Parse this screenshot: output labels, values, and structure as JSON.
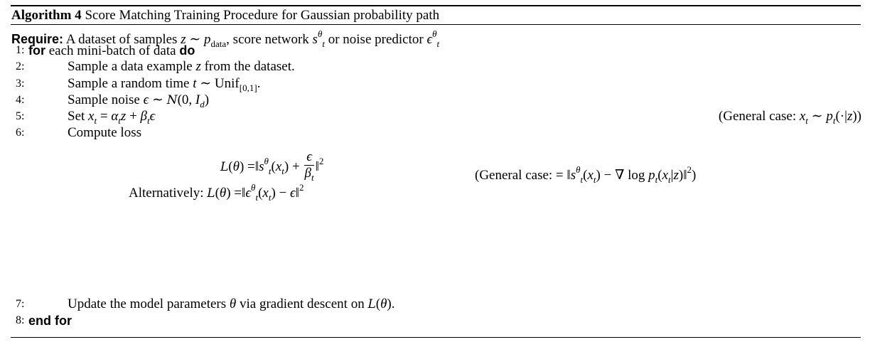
{
  "algorithm": {
    "label": "Algorithm 4",
    "title": "Score Matching Training Procedure for Gaussian probability path",
    "require_keyword": "Require:",
    "require": [
      [
        "rm",
        "A dataset of samples "
      ],
      [
        "it",
        "z"
      ],
      [
        "rm",
        " ∼ "
      ],
      [
        "it",
        "p"
      ],
      [
        "subrm",
        "data"
      ],
      [
        "rm",
        ", score network "
      ],
      [
        "it",
        "s"
      ],
      [
        "sup",
        "θ"
      ],
      [
        "sub",
        "t"
      ],
      [
        "rm",
        " or noise predictor "
      ],
      [
        "it",
        "ϵ"
      ],
      [
        "sup",
        "θ"
      ],
      [
        "sub",
        "t"
      ]
    ],
    "steps": [
      {
        "num": "1:",
        "segs": [
          [
            "kw",
            "for"
          ],
          [
            "rm",
            " each mini-batch of data "
          ],
          [
            "kw",
            "do"
          ]
        ]
      },
      {
        "num": "2:",
        "segs": [
          [
            "rm",
            "Sample a data example "
          ],
          [
            "it",
            "z"
          ],
          [
            "rm",
            " from the dataset."
          ]
        ]
      },
      {
        "num": "3:",
        "segs": [
          [
            "rm",
            "Sample a random time "
          ],
          [
            "it",
            "t"
          ],
          [
            "rm",
            " ∼ Unif"
          ],
          [
            "subrm",
            "[0,1]"
          ],
          [
            "rm",
            "."
          ]
        ]
      },
      {
        "num": "4:",
        "segs": [
          [
            "rm",
            "Sample noise "
          ],
          [
            "it",
            "ϵ"
          ],
          [
            "rm",
            " ∼ "
          ],
          [
            "cal",
            "N"
          ],
          [
            "rm",
            "(0, "
          ],
          [
            "it",
            "I"
          ],
          [
            "sub",
            "d"
          ],
          [
            "rm",
            ")"
          ]
        ]
      },
      {
        "num": "5:",
        "segs": [
          [
            "rm",
            "Set "
          ],
          [
            "it",
            "x"
          ],
          [
            "sub",
            "t"
          ],
          [
            "rm",
            " = "
          ],
          [
            "it",
            "α"
          ],
          [
            "sub",
            "t"
          ],
          [
            "it",
            "z"
          ],
          [
            "rm",
            " + "
          ],
          [
            "it",
            "β"
          ],
          [
            "sub",
            "t"
          ],
          [
            "it",
            "ϵ"
          ]
        ],
        "comment": [
          [
            "rm",
            "(General case: "
          ],
          [
            "it",
            "x"
          ],
          [
            "sub",
            "t"
          ],
          [
            "rm",
            " ∼ "
          ],
          [
            "it",
            "p"
          ],
          [
            "sub",
            "t"
          ],
          [
            "rm",
            "(·|"
          ],
          [
            "it",
            "z"
          ],
          [
            "rm",
            "))"
          ]
        ]
      },
      {
        "num": "6:",
        "segs": [
          [
            "rm",
            "Compute loss"
          ]
        ]
      },
      {
        "num": "7:",
        "segs": [
          [
            "rm",
            "Update the model parameters "
          ],
          [
            "it",
            "θ"
          ],
          [
            "rm",
            " via gradient descent on "
          ],
          [
            "cal",
            "L"
          ],
          [
            "rm",
            "("
          ],
          [
            "it",
            "θ"
          ],
          [
            "rm",
            ")."
          ]
        ]
      },
      {
        "num": "8:",
        "segs": [
          [
            "kw",
            "end for"
          ]
        ]
      }
    ],
    "loss_eq": {
      "lhs": [
        [
          "cal",
          "L"
        ],
        [
          "rm",
          "("
        ],
        [
          "it",
          "θ"
        ],
        [
          "rm",
          ") =‖"
        ],
        [
          "it",
          "s"
        ],
        [
          "sup",
          "θ"
        ],
        [
          "sub",
          "t"
        ],
        [
          "rm",
          "("
        ],
        [
          "it",
          "x"
        ],
        [
          "sub",
          "t"
        ],
        [
          "rm",
          ") + "
        ]
      ],
      "frac_num": "ϵ",
      "frac_den_base": "β",
      "frac_den_sub": "t",
      "rhs": [
        [
          "rm",
          "‖"
        ],
        [
          "suprm",
          "2"
        ]
      ],
      "comment": [
        [
          "rm",
          "(General case:  = ‖"
        ],
        [
          "it",
          "s"
        ],
        [
          "sup",
          "θ"
        ],
        [
          "sub",
          "t"
        ],
        [
          "rm",
          "("
        ],
        [
          "it",
          "x"
        ],
        [
          "sub",
          "t"
        ],
        [
          "rm",
          ") − ∇ log "
        ],
        [
          "it",
          "p"
        ],
        [
          "sub",
          "t"
        ],
        [
          "rm",
          "("
        ],
        [
          "it",
          "x"
        ],
        [
          "sub",
          "t"
        ],
        [
          "rm",
          "|"
        ],
        [
          "it",
          "z"
        ],
        [
          "rm",
          ")‖"
        ],
        [
          "suprm",
          "2"
        ],
        [
          "rm",
          ")"
        ]
      ]
    },
    "alt_eq": [
      [
        "rm",
        "Alternatively: "
      ],
      [
        "cal",
        "L"
      ],
      [
        "rm",
        "("
      ],
      [
        "it",
        "θ"
      ],
      [
        "rm",
        ") =‖"
      ],
      [
        "it",
        "ϵ"
      ],
      [
        "sup",
        "θ"
      ],
      [
        "sub",
        "t"
      ],
      [
        "rm",
        "("
      ],
      [
        "it",
        "x"
      ],
      [
        "sub",
        "t"
      ],
      [
        "rm",
        ") − "
      ],
      [
        "it",
        "ϵ"
      ],
      [
        "rm",
        "‖"
      ],
      [
        "suprm",
        "2"
      ]
    ]
  }
}
